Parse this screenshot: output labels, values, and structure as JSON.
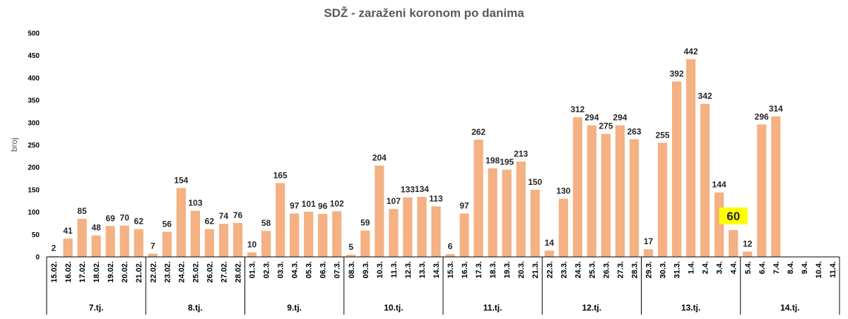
{
  "chart_data": {
    "type": "bar",
    "title": "SDŽ - zaraženi koronom po danima",
    "ylabel": "broj",
    "ylim": [
      0,
      500
    ],
    "yticks": [
      0,
      50,
      100,
      150,
      200,
      250,
      300,
      350,
      400,
      450,
      500
    ],
    "grid": false,
    "bar_color": "#F4B183",
    "highlight_color": "#FFFF00",
    "highlight_index": 48,
    "categories": [
      "15.02.",
      "16.02.",
      "17.02.",
      "18.02.",
      "19.02.",
      "20.02.",
      "21.02.",
      "22.02.",
      "23.02.",
      "24.02.",
      "25.02.",
      "26.02.",
      "27.02.",
      "28.02.",
      "01.3.",
      "02.3.",
      "03.3.",
      "04.3.",
      "05.3.",
      "06.3.",
      "07.3.",
      "08.3.",
      "09.3.",
      "10.3.",
      "11.3.",
      "12.3.",
      "13.3.",
      "14.3.",
      "15.3.",
      "16.3.",
      "17.3.",
      "18.3.",
      "19.3.",
      "20.3.",
      "21.3.",
      "22.3.",
      "23.3.",
      "24.3.",
      "25.3.",
      "26.3.",
      "27.3.",
      "28.3.",
      "29.3.",
      "30.3.",
      "31.3.",
      "1.4.",
      "2.4.",
      "3.4.",
      "4.4.",
      "5.4.",
      "6.4.",
      "7.4.",
      "8.4.",
      "9.4.",
      "10.4.",
      "11.4."
    ],
    "values": [
      2,
      41,
      85,
      48,
      69,
      70,
      62,
      7,
      56,
      154,
      103,
      62,
      74,
      76,
      10,
      58,
      165,
      97,
      101,
      96,
      102,
      5,
      59,
      204,
      107,
      133,
      134,
      113,
      6,
      97,
      262,
      198,
      195,
      213,
      150,
      14,
      130,
      312,
      294,
      275,
      294,
      263,
      17,
      255,
      392,
      442,
      342,
      144,
      60,
      12,
      296,
      314,
      null,
      null,
      null,
      null
    ],
    "groups": [
      {
        "label": "7.tj.",
        "count": 7
      },
      {
        "label": "8.tj.",
        "count": 7
      },
      {
        "label": "9.tj.",
        "count": 7
      },
      {
        "label": "10.tj.",
        "count": 7
      },
      {
        "label": "11.tj.",
        "count": 7
      },
      {
        "label": "12.tj.",
        "count": 7
      },
      {
        "label": "13.tj.",
        "count": 7
      },
      {
        "label": "14.tj.",
        "count": 7
      }
    ]
  }
}
